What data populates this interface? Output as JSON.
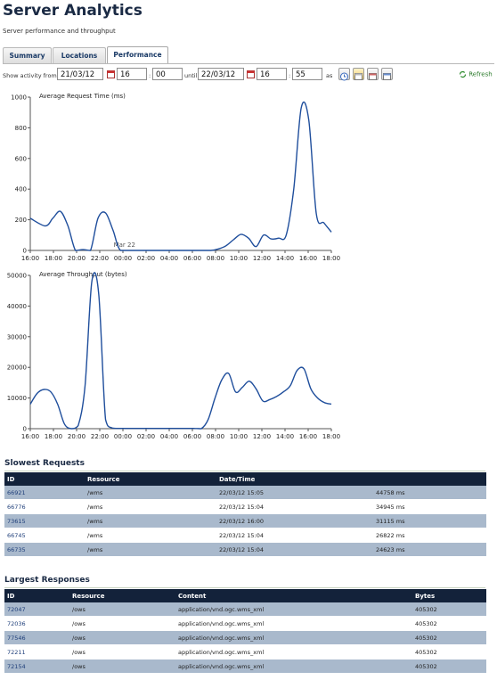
{
  "header": {
    "title": "Server Analytics",
    "subtitle": "Server performance and throughput"
  },
  "tabs": [
    {
      "label": "Summary",
      "active": false
    },
    {
      "label": "Locations",
      "active": false
    },
    {
      "label": "Performance",
      "active": true
    }
  ],
  "filter": {
    "show_label": "Show activity from",
    "from_date": "21/03/12",
    "from_hour": "16",
    "from_minute": "00",
    "until_label": "until",
    "until_date": "22/03/12",
    "until_hour": "16",
    "until_minute": "55",
    "as_label": "as",
    "colon": ":",
    "refresh_label": "Refresh",
    "view_icons": [
      "clock-icon",
      "calendar-day-icon",
      "calendar-week-icon",
      "calendar-month-icon"
    ]
  },
  "chart_data": [
    {
      "type": "line",
      "title": "Average Request Time (ms)",
      "annotation": "Mar 22",
      "x": [
        "16:00",
        "18:00",
        "20:00",
        "22:00",
        "00:00",
        "02:00",
        "04:00",
        "06:00",
        "08:00",
        "10:00",
        "12:00",
        "14:00",
        "16:00",
        "18:00"
      ],
      "ylim": [
        0,
        1000
      ],
      "yticks": [
        0,
        200,
        400,
        600,
        800,
        1000
      ],
      "series": [
        {
          "values": [
            [
              0,
              210
            ],
            [
              1,
              160
            ],
            [
              1.5,
              210
            ],
            [
              2,
              255
            ],
            [
              2.5,
              160
            ],
            [
              3,
              0
            ],
            [
              3.5,
              5
            ],
            [
              4,
              0
            ],
            [
              4.5,
              210
            ],
            [
              5,
              245
            ],
            [
              5.5,
              130
            ],
            [
              6,
              0
            ],
            [
              7,
              0
            ],
            [
              8,
              0
            ],
            [
              9,
              0
            ],
            [
              10,
              0
            ],
            [
              11,
              0
            ],
            [
              12,
              0
            ],
            [
              12.5,
              10
            ],
            [
              13,
              30
            ],
            [
              13.5,
              70
            ],
            [
              14,
              105
            ],
            [
              14.5,
              80
            ],
            [
              15,
              25
            ],
            [
              15.5,
              100
            ],
            [
              16,
              75
            ],
            [
              16.5,
              80
            ],
            [
              17,
              100
            ],
            [
              17.5,
              400
            ],
            [
              18,
              930
            ],
            [
              18.5,
              850
            ],
            [
              19,
              240
            ],
            [
              19.5,
              180
            ],
            [
              20,
              120
            ]
          ]
        }
      ]
    },
    {
      "type": "line",
      "title": "Average Throughput (bytes)",
      "x": [
        "16:00",
        "18:00",
        "20:00",
        "22:00",
        "00:00",
        "02:00",
        "04:00",
        "06:00",
        "08:00",
        "10:00",
        "12:00",
        "14:00",
        "16:00",
        "18:00"
      ],
      "ylim": [
        0,
        50000
      ],
      "yticks": [
        0,
        10000,
        20000,
        30000,
        40000,
        50000
      ],
      "series": [
        {
          "values": [
            [
              0,
              8000
            ],
            [
              0.5,
              11500
            ],
            [
              1,
              12800
            ],
            [
              1.5,
              12000
            ],
            [
              2,
              8000
            ],
            [
              2.5,
              1500
            ],
            [
              3,
              0
            ],
            [
              3.5,
              1000
            ],
            [
              4,
              14000
            ],
            [
              4.5,
              48000
            ],
            [
              5,
              44000
            ],
            [
              5.5,
              3000
            ],
            [
              6,
              200
            ],
            [
              7,
              100
            ],
            [
              8,
              100
            ],
            [
              9,
              100
            ],
            [
              10,
              100
            ],
            [
              11,
              100
            ],
            [
              12,
              100
            ],
            [
              12.5,
              0
            ],
            [
              13,
              3000
            ],
            [
              13.5,
              10000
            ],
            [
              14,
              16000
            ],
            [
              14.5,
              18000
            ],
            [
              15,
              12000
            ],
            [
              15.5,
              13500
            ],
            [
              16,
              15500
            ],
            [
              16.5,
              13000
            ],
            [
              17,
              9000
            ],
            [
              17.5,
              9500
            ],
            [
              18,
              10500
            ],
            [
              18.5,
              12000
            ],
            [
              19,
              14000
            ],
            [
              19.5,
              19000
            ],
            [
              20,
              19500
            ],
            [
              20.5,
              13000
            ],
            [
              21,
              10000
            ],
            [
              21.5,
              8500
            ],
            [
              22,
              8000
            ]
          ]
        }
      ]
    }
  ],
  "slowest": {
    "title": "Slowest Requests",
    "columns": [
      "ID",
      "Resource",
      "Date/Time",
      ""
    ],
    "rows": [
      [
        "66921",
        "/wms",
        "22/03/12 15:05",
        "44758 ms"
      ],
      [
        "66776",
        "/wms",
        "22/03/12 15:04",
        "34945 ms"
      ],
      [
        "73615",
        "/wms",
        "22/03/12 16:00",
        "31115 ms"
      ],
      [
        "66745",
        "/wms",
        "22/03/12 15:04",
        "26822 ms"
      ],
      [
        "66735",
        "/wms",
        "22/03/12 15:04",
        "24623 ms"
      ]
    ]
  },
  "largest": {
    "title": "Largest Responses",
    "columns": [
      "ID",
      "Resource",
      "Content",
      "Bytes"
    ],
    "rows": [
      [
        "72047",
        "/ows",
        "application/vnd.ogc.wms_xml",
        "405302"
      ],
      [
        "72036",
        "/ows",
        "application/vnd.ogc.wms_xml",
        "405302"
      ],
      [
        "77546",
        "/ows",
        "application/vnd.ogc.wms_xml",
        "405302"
      ],
      [
        "72211",
        "/ows",
        "application/vnd.ogc.wms_xml",
        "405302"
      ],
      [
        "72154",
        "/ows",
        "application/vnd.ogc.wms_xml",
        "405302"
      ]
    ]
  },
  "colors": {
    "line": "#1f4e9c",
    "header_bg": "#13223a",
    "alt_row": "#a9b9cc",
    "title": "#1a2a44"
  }
}
